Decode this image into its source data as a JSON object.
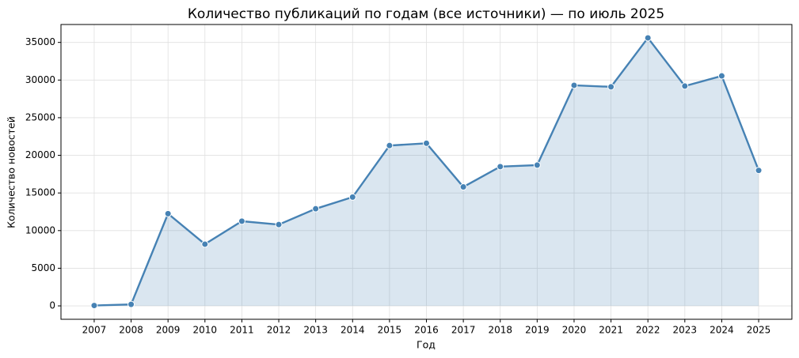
{
  "chart_data": {
    "type": "line",
    "title": "Количество публикаций по годам (все источники) — по июль 2025",
    "x_label": "Год",
    "y_label": "Количество новостей",
    "x": [
      2007,
      2008,
      2009,
      2010,
      2011,
      2012,
      2013,
      2014,
      2015,
      2016,
      2017,
      2018,
      2019,
      2020,
      2021,
      2022,
      2023,
      2024,
      2025
    ],
    "series": [
      {
        "name": "Количество новостей",
        "color": "#4682b4",
        "values": [
          50,
          200,
          12250,
          8200,
          11250,
          10800,
          12900,
          14450,
          21300,
          21600,
          15800,
          18500,
          18700,
          29300,
          29100,
          35600,
          29200,
          30550,
          18000
        ]
      }
    ],
    "area_fill": true,
    "grid": true,
    "xlim": [
      2006.1,
      2025.9
    ],
    "xticks": [
      2007,
      2008,
      2009,
      2010,
      2011,
      2012,
      2013,
      2014,
      2015,
      2016,
      2017,
      2018,
      2019,
      2020,
      2021,
      2022,
      2023,
      2024,
      2025
    ],
    "ylim": [
      -1780,
      37380
    ],
    "yticks": [
      0,
      5000,
      10000,
      15000,
      20000,
      25000,
      30000,
      35000
    ]
  }
}
